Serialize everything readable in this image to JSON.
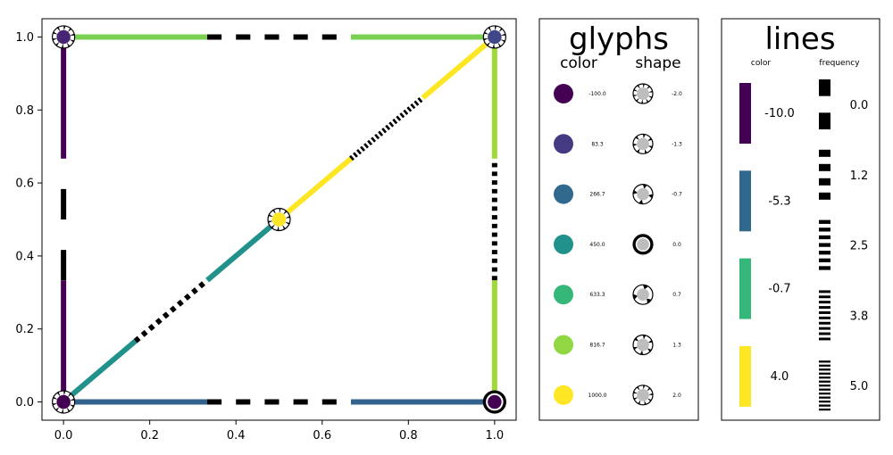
{
  "main_plot": {
    "x_ticks": [
      "0.0",
      "0.2",
      "0.4",
      "0.6",
      "0.8",
      "1.0"
    ],
    "y_ticks": [
      "0.0",
      "0.2",
      "0.4",
      "0.6",
      "0.8",
      "1.0"
    ],
    "xlim": [
      -0.05,
      1.05
    ],
    "ylim": [
      -0.05,
      1.05
    ],
    "tick_values": [
      0,
      0.2,
      0.4,
      0.6,
      0.8,
      1.0
    ],
    "nodes": [
      {
        "x": 0,
        "y": 1,
        "color": "#482475",
        "shape": "star"
      },
      {
        "x": 1,
        "y": 1,
        "color": "#3f4788",
        "shape": "star"
      },
      {
        "x": 0.5,
        "y": 0.5,
        "color": "#fde725",
        "shape": "star"
      },
      {
        "x": 0,
        "y": 0,
        "color": "#440154",
        "shape": "star"
      },
      {
        "x": 1,
        "y": 0,
        "color": "#440154",
        "shape": "circle"
      }
    ],
    "edges": [
      {
        "x1": 0,
        "y1": 0,
        "x2": 1,
        "y2": 0,
        "color": "#33638d",
        "frequency": 1.2
      },
      {
        "x1": 0,
        "y1": 1,
        "x2": 1,
        "y2": 1,
        "color": "#7ad151",
        "frequency": 1.2
      },
      {
        "x1": 0,
        "y1": 0,
        "x2": 0,
        "y2": 1,
        "color": "#440154",
        "frequency": 0.6
      },
      {
        "x1": 1,
        "y1": 0,
        "x2": 1,
        "y2": 1,
        "color": "#a0da39",
        "frequency": 3.5
      },
      {
        "x1": 0,
        "y1": 0,
        "x2": 0.5,
        "y2": 0.5,
        "color": "#21918c",
        "frequency": 2.5
      },
      {
        "x1": 0.5,
        "y1": 0.5,
        "x2": 1,
        "y2": 1,
        "color": "#fde725",
        "frequency": 5.0
      }
    ]
  },
  "glyphs_legend": {
    "title": "glyphs",
    "color_header": "color",
    "shape_header": "shape",
    "colors": [
      {
        "label": "-100.0",
        "color": "#440154"
      },
      {
        "label": "83.3",
        "color": "#443983"
      },
      {
        "label": "266.7",
        "color": "#31688e"
      },
      {
        "label": "450.0",
        "color": "#21918c"
      },
      {
        "label": "633.3",
        "color": "#35b779"
      },
      {
        "label": "816.7",
        "color": "#90d743"
      },
      {
        "label": "1000.0",
        "color": "#fde725"
      }
    ],
    "shapes": [
      {
        "label": "-2.0",
        "points": 10
      },
      {
        "label": "-1.3",
        "points": 7
      },
      {
        "label": "-0.7",
        "points": 4
      },
      {
        "label": "0.0",
        "points": 0
      },
      {
        "label": "0.7",
        "points": 3
      },
      {
        "label": "1.3",
        "points": 6
      },
      {
        "label": "2.0",
        "points": 9
      }
    ]
  },
  "lines_legend": {
    "title": "lines",
    "color_header": "color",
    "frequency_header": "frequency",
    "colors": [
      {
        "label": "-10.0",
        "color": "#440154"
      },
      {
        "label": "-5.3",
        "color": "#31688e"
      },
      {
        "label": "-0.7",
        "color": "#35b779"
      },
      {
        "label": "4.0",
        "color": "#fde725"
      }
    ],
    "frequencies": [
      {
        "label": "0.0",
        "frequency": 0.6
      },
      {
        "label": "1.2",
        "frequency": 1.2
      },
      {
        "label": "2.5",
        "frequency": 2.5
      },
      {
        "label": "3.8",
        "frequency": 3.8
      },
      {
        "label": "5.0",
        "frequency": 5.0
      }
    ]
  }
}
